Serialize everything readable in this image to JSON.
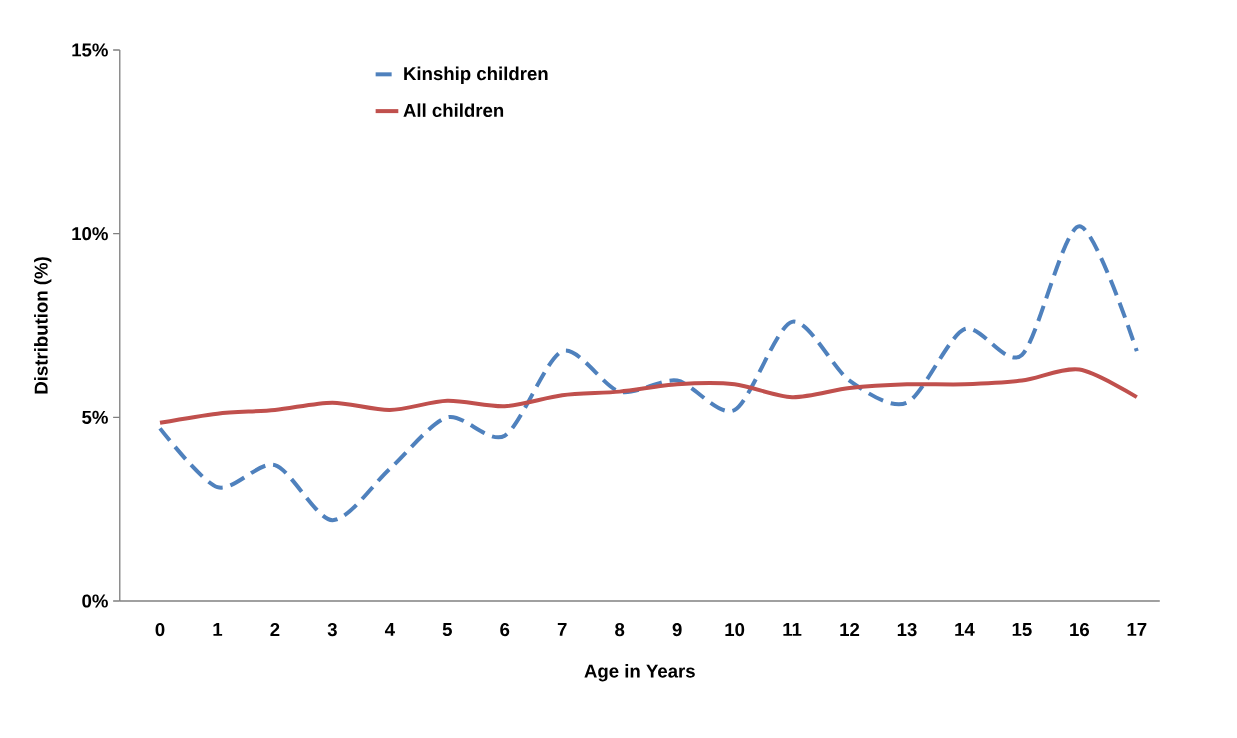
{
  "chart_data": {
    "type": "line",
    "xlabel": "Age in Years",
    "ylabel": "Distribution (%)",
    "categories": [
      "0",
      "1",
      "2",
      "3",
      "4",
      "5",
      "6",
      "7",
      "8",
      "9",
      "10",
      "11",
      "12",
      "13",
      "14",
      "15",
      "16",
      "17"
    ],
    "series": [
      {
        "name": "Kinship children",
        "color": "#4f81bd",
        "line_style": "dashed",
        "values": [
          4.7,
          3.1,
          3.7,
          2.2,
          3.6,
          5.0,
          4.5,
          6.8,
          5.7,
          6.0,
          5.2,
          7.6,
          6.0,
          5.4,
          7.4,
          6.7,
          10.2,
          6.8
        ]
      },
      {
        "name": "All children",
        "color": "#c0504d",
        "line_style": "solid",
        "values": [
          4.85,
          5.1,
          5.2,
          5.4,
          5.2,
          5.45,
          5.3,
          5.6,
          5.7,
          5.9,
          5.9,
          5.55,
          5.8,
          5.9,
          5.9,
          6.0,
          6.3,
          5.55
        ]
      }
    ],
    "ylim": [
      0,
      15
    ],
    "yticks": [
      {
        "value": 0,
        "label": "0%"
      },
      {
        "value": 5,
        "label": "5%"
      },
      {
        "value": 10,
        "label": "10%"
      },
      {
        "value": 15,
        "label": "15%"
      }
    ],
    "grid": false,
    "legend": "top left",
    "marker": "none"
  }
}
